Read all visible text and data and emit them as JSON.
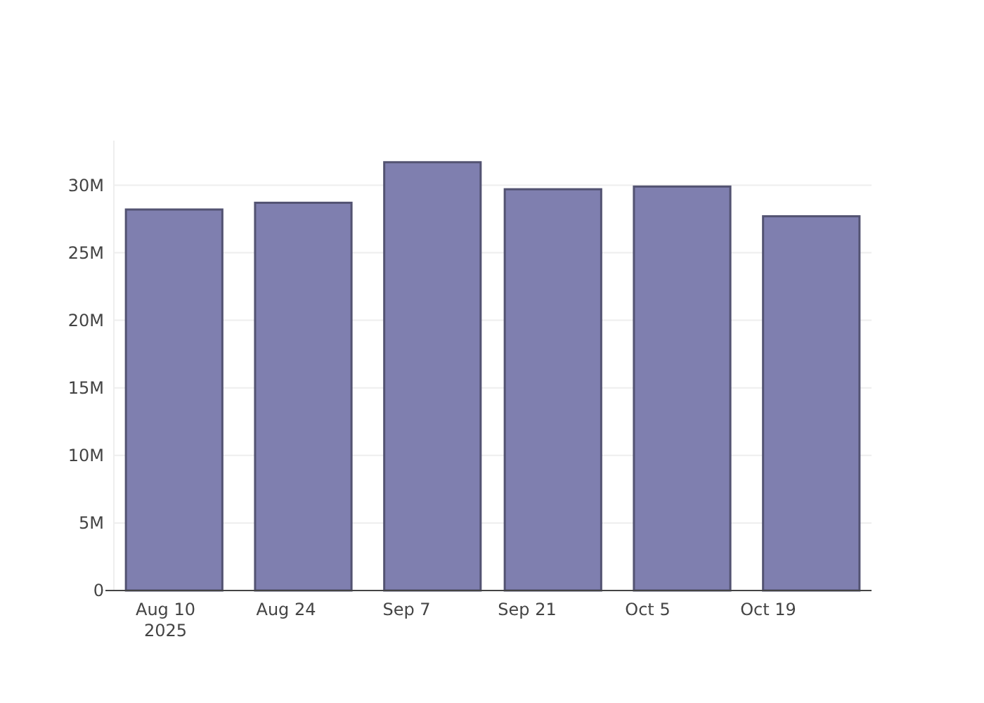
{
  "chart_data": {
    "type": "bar",
    "x": [
      "2025-08-11",
      "2025-08-26",
      "2025-09-10",
      "2025-09-24",
      "2025-10-09",
      "2025-10-24"
    ],
    "values": [
      28200000,
      28700000,
      31700000,
      29700000,
      29900000,
      27700000
    ],
    "color": "#7f7faf",
    "xlim": [
      "2025-08-04",
      "2025-10-31"
    ],
    "xticks": [
      {
        "value": "2025-08-10",
        "label": "Aug 10\n2025"
      },
      {
        "value": "2025-08-24",
        "label": "Aug 24"
      },
      {
        "value": "2025-09-07",
        "label": "Sep 7"
      },
      {
        "value": "2025-09-21",
        "label": "Sep 21"
      },
      {
        "value": "2025-10-05",
        "label": "Oct 5"
      },
      {
        "value": "2025-10-19",
        "label": "Oct 19"
      }
    ],
    "ylim": [
      0,
      33300000
    ],
    "yticks": [
      {
        "value": 0,
        "label": "0"
      },
      {
        "value": 5000000,
        "label": "5M"
      },
      {
        "value": 10000000,
        "label": "10M"
      },
      {
        "value": 15000000,
        "label": "15M"
      },
      {
        "value": 20000000,
        "label": "20M"
      },
      {
        "value": 25000000,
        "label": "25M"
      },
      {
        "value": 30000000,
        "label": "30M"
      }
    ],
    "grid": "y"
  }
}
